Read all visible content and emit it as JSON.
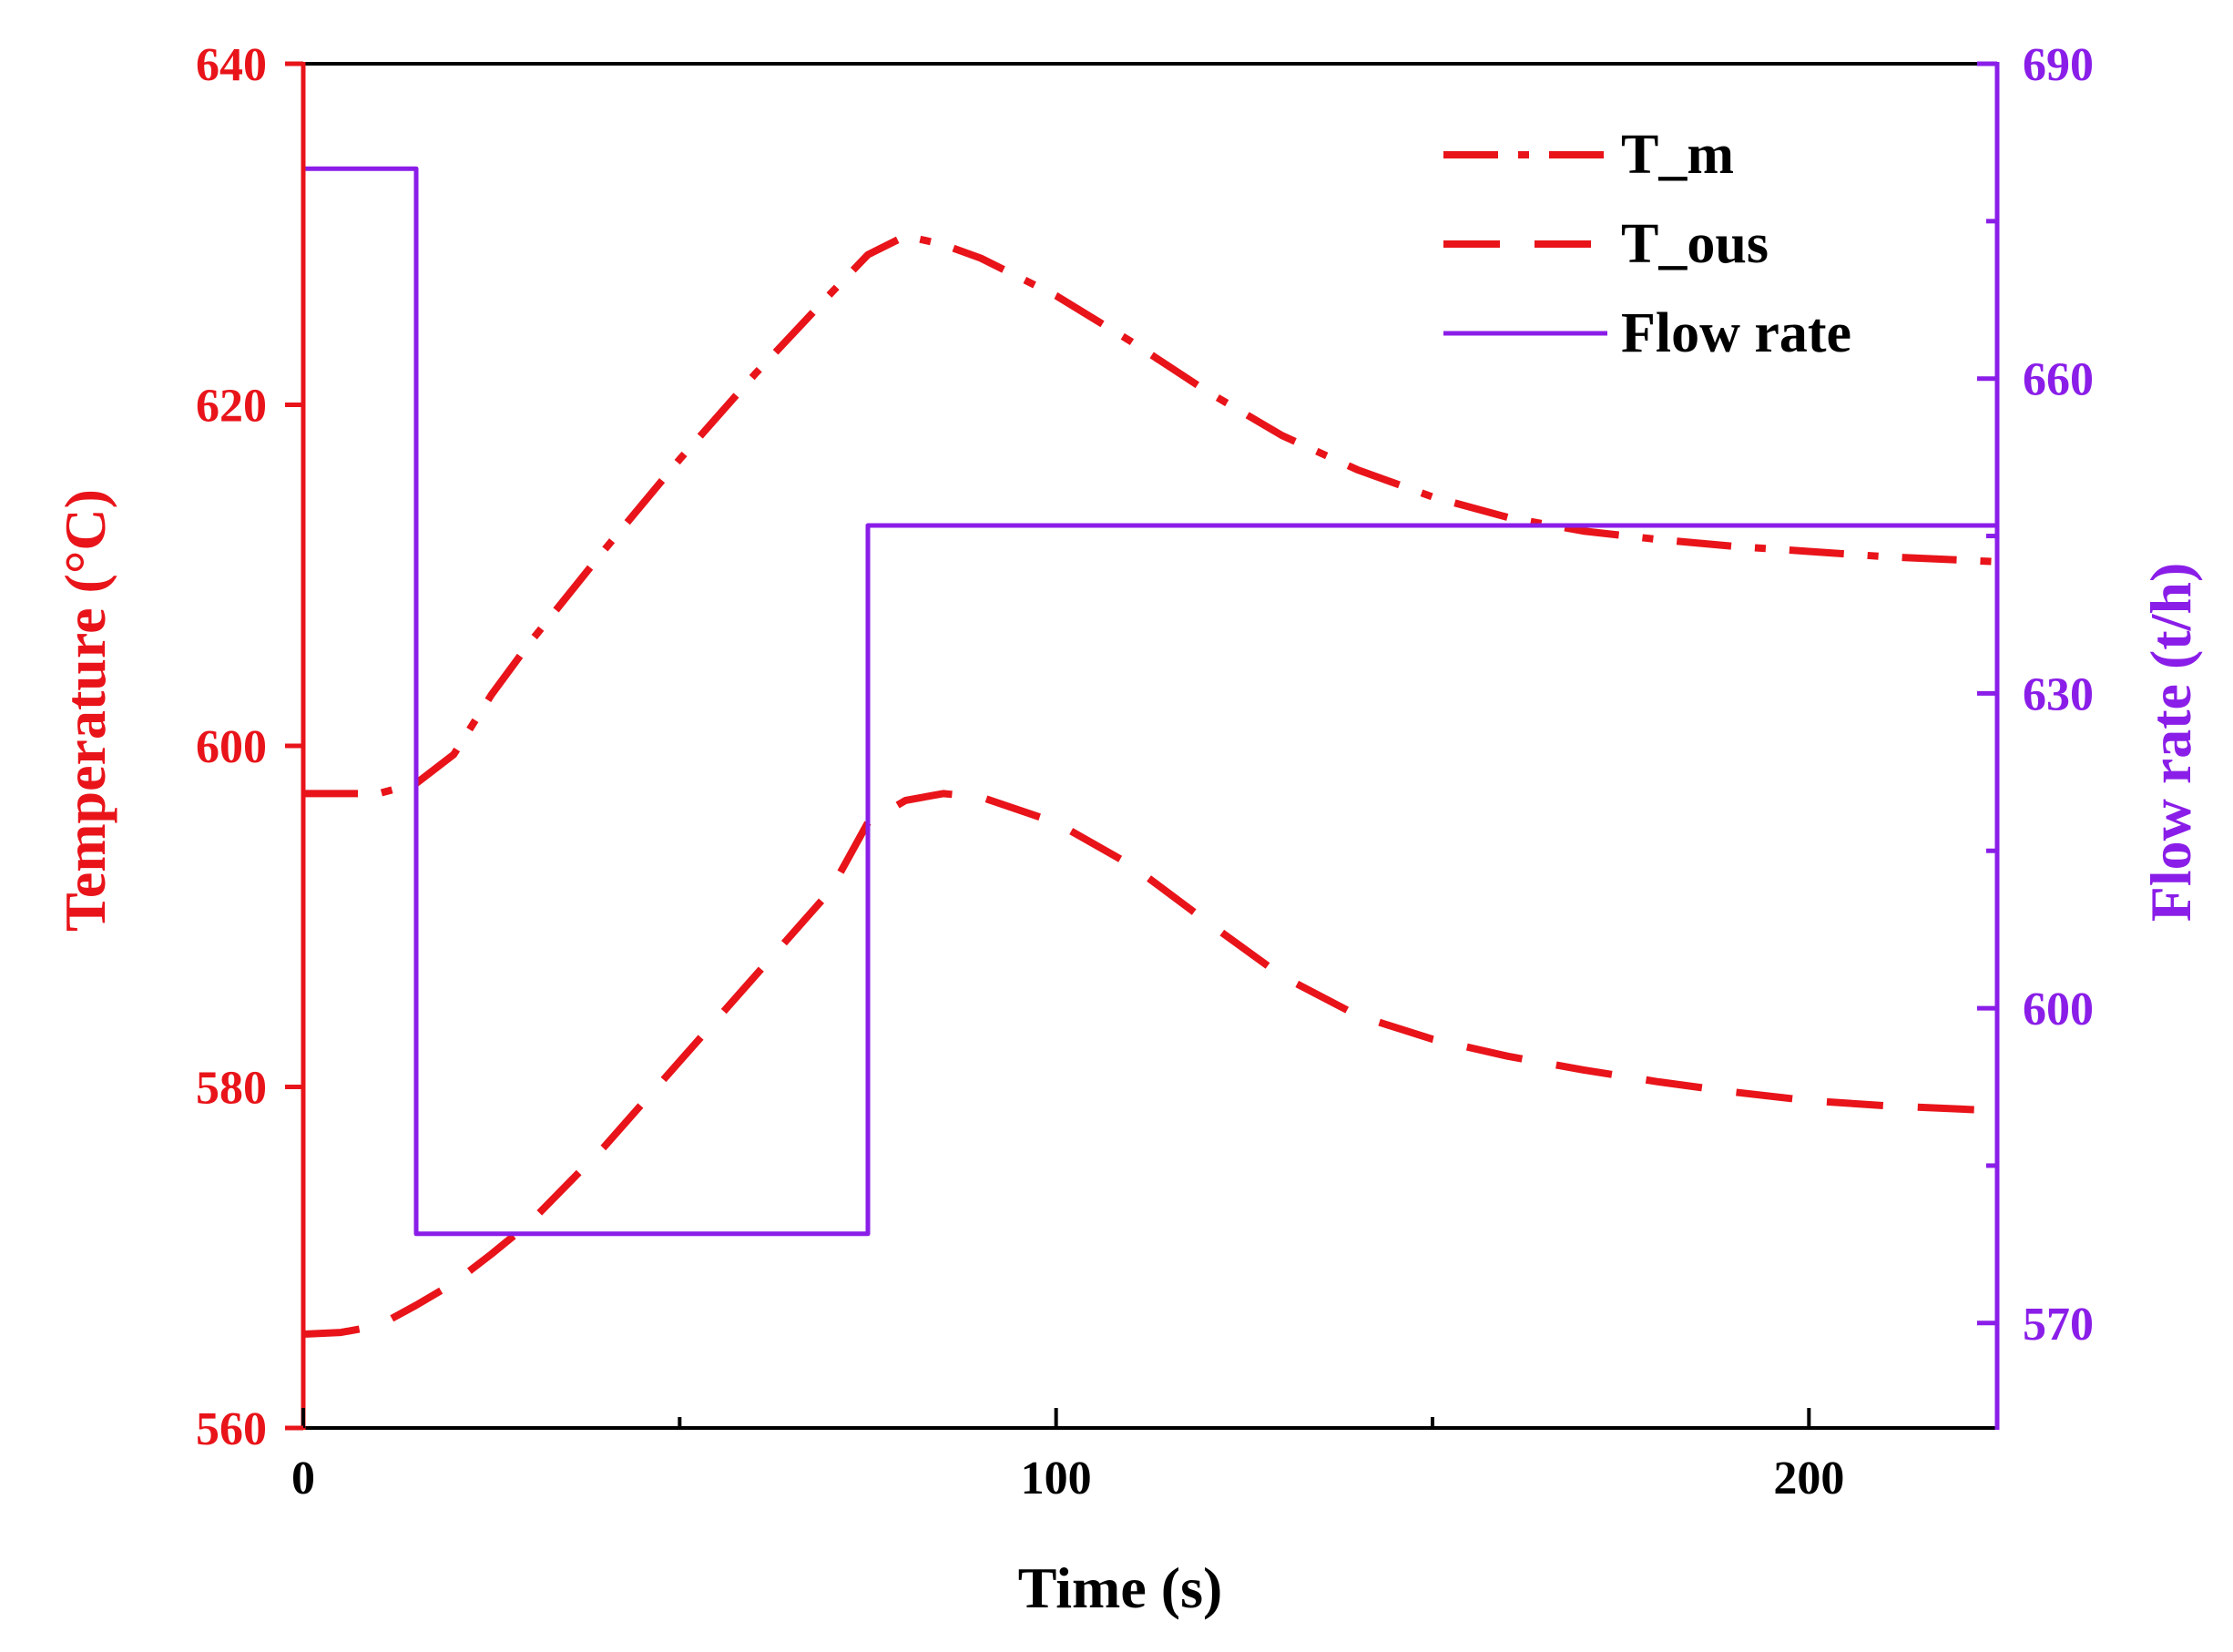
{
  "chart_data": {
    "type": "line",
    "xlabel": "Time (s)",
    "ylabel_left": "Temperature (°C)",
    "ylabel_right": "Flow rate (t/h)",
    "xlim": [
      0,
      225
    ],
    "ylim_left": [
      560,
      640
    ],
    "ylim_right": [
      560,
      690
    ],
    "x_ticks": [
      0,
      100,
      200
    ],
    "x_minor_ticks": [
      50,
      150
    ],
    "y_left_ticks": [
      560,
      580,
      600,
      620,
      640
    ],
    "y_right_ticks": [
      570,
      600,
      630,
      660,
      690
    ],
    "y_right_minor_ticks": [
      585,
      615,
      645,
      675
    ],
    "grid": false,
    "legend_position": "top-right",
    "colors": {
      "temperature": "#e8141a",
      "flow": "#8a1ee8",
      "frame": "#000000"
    },
    "series": [
      {
        "name": "T_m",
        "axis": "left",
        "style": "dash-dot",
        "x": [
          0,
          10,
          15,
          20,
          25,
          30,
          40,
          50,
          60,
          70,
          75,
          80,
          85,
          90,
          100,
          110,
          120,
          130,
          140,
          150,
          160,
          170,
          180,
          190,
          200,
          210,
          220,
          225
        ],
        "y": [
          597.2,
          597.2,
          597.8,
          599.5,
          603.0,
          606.0,
          611.5,
          616.8,
          621.8,
          626.5,
          628.8,
          629.9,
          629.4,
          628.6,
          626.4,
          623.7,
          620.8,
          618.2,
          616.2,
          614.6,
          613.4,
          612.6,
          612.1,
          611.7,
          611.4,
          611.1,
          610.9,
          610.8
        ]
      },
      {
        "name": "T_ous",
        "axis": "left",
        "style": "dash",
        "x": [
          0,
          5,
          10,
          15,
          20,
          25,
          30,
          40,
          50,
          60,
          70,
          75,
          80,
          85,
          90,
          100,
          110,
          120,
          130,
          140,
          150,
          160,
          170,
          180,
          190,
          200,
          210,
          220,
          225
        ],
        "y": [
          565.5,
          565.6,
          566.0,
          567.2,
          568.5,
          570.2,
          572.0,
          576.5,
          581.5,
          586.5,
          591.5,
          595.5,
          596.8,
          597.2,
          597.0,
          595.5,
          593.0,
          589.7,
          586.5,
          584.2,
          582.8,
          581.8,
          581.0,
          580.3,
          579.7,
          579.2,
          578.9,
          578.7,
          578.6
        ]
      },
      {
        "name": "Flow rate",
        "axis": "right",
        "style": "solid-step",
        "x": [
          0,
          15,
          15,
          75,
          75,
          225
        ],
        "y": [
          680.0,
          680.0,
          578.5,
          578.5,
          646.0,
          646.0
        ]
      }
    ]
  }
}
